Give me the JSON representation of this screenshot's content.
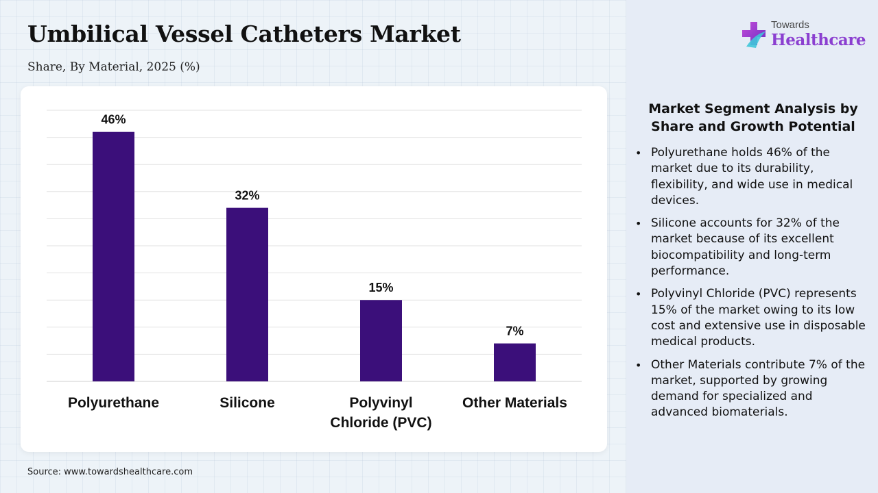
{
  "header": {
    "title": "Umbilical Vessel Catheters Market",
    "subtitle": "Share, By Material, 2025 (%)"
  },
  "logo": {
    "top": "Towards",
    "bottom": "Healthcare"
  },
  "analysis": {
    "title": "Market Segment Analysis by Share and Growth Potential",
    "points": [
      "Polyurethane holds 46% of the market due to its durability, flexibility, and wide use in medical devices.",
      "Silicone accounts for 32% of the market because of its excellent biocompatibility and long-term performance.",
      "Polyvinyl Chloride (PVC) represents 15% of the market owing to its low cost and extensive use in disposable medical products.",
      "Other Materials contribute 7% of the market, supported by growing demand for specialized and advanced biomaterials."
    ]
  },
  "source": "Source: www.towardshealthcare.com",
  "chart_data": {
    "type": "bar",
    "categories": [
      "Polyurethane",
      "Silicone",
      "Polyvinyl Chloride (PVC)",
      "Other Materials"
    ],
    "category_lines": [
      [
        "Polyurethane"
      ],
      [
        "Silicone"
      ],
      [
        "Polyvinyl",
        "Chloride (PVC)"
      ],
      [
        "Other Materials"
      ]
    ],
    "values": [
      46,
      32,
      15,
      7
    ],
    "data_labels": [
      "46%",
      "32%",
      "15%",
      "7%"
    ],
    "ylim": [
      0,
      50
    ],
    "grid": true,
    "bar_color": "#3b0f7a"
  }
}
